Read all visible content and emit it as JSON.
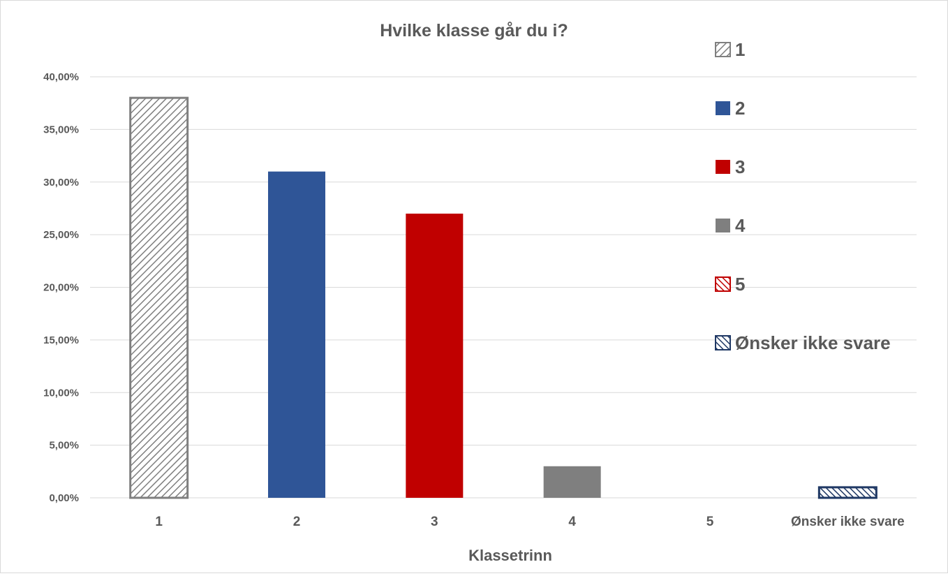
{
  "chart_data": {
    "type": "bar",
    "title": "Hvilke klasse går du i?",
    "xlabel": "Klassetrinn",
    "ylabel": "",
    "categories": [
      "1",
      "2",
      "3",
      "4",
      "5",
      "Ønsker ikke svare"
    ],
    "values": [
      38.0,
      31.0,
      27.0,
      3.0,
      0.0,
      1.0
    ],
    "ylim": [
      0,
      40
    ],
    "yticks": [
      0,
      5,
      10,
      15,
      20,
      25,
      30,
      35,
      40
    ],
    "ytick_labels": [
      "0,00%",
      "5,00%",
      "10,00%",
      "15,00%",
      "20,00%",
      "25,00%",
      "30,00%",
      "35,00%",
      "40,00%"
    ],
    "grid": true,
    "legend_position": "right",
    "legend": [
      "1",
      "2",
      "3",
      "4",
      "5",
      "Ønsker ikke svare"
    ],
    "colors": [
      "#7f7f7f",
      "#2f5597",
      "#c00000",
      "#7f7f7f",
      "#c00000",
      "#1f3864"
    ],
    "fills": [
      "hatch-gray",
      "solid",
      "solid",
      "solid",
      "hatch-red",
      "hatch-navy"
    ]
  }
}
